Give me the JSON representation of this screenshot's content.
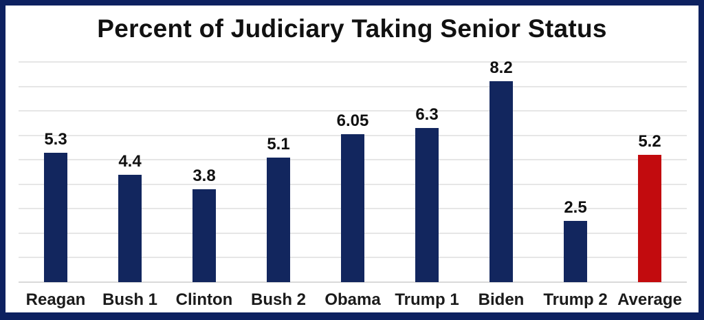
{
  "chart_data": {
    "type": "bar",
    "title": "Percent of Judiciary Taking Senior Status",
    "categories": [
      "Reagan",
      "Bush 1",
      "Clinton",
      "Bush 2",
      "Obama",
      "Trump 1",
      "Biden",
      "Trump 2",
      "Average"
    ],
    "values": [
      5.3,
      4.4,
      3.8,
      5.1,
      6.05,
      6.3,
      8.2,
      2.5,
      5.2
    ],
    "value_labels": [
      "5.3",
      "4.4",
      "3.8",
      "5.1",
      "6.05",
      "6.3",
      "8.2",
      "2.5",
      "5.2"
    ],
    "bar_colors": [
      "#12265e",
      "#12265e",
      "#12265e",
      "#12265e",
      "#12265e",
      "#12265e",
      "#12265e",
      "#12265e",
      "#c20b0e"
    ],
    "default_bar_color": "#12265e",
    "highlight_bar_color": "#c20b0e",
    "xlabel": "",
    "ylabel": "",
    "ylim": [
      0,
      9
    ],
    "gridline_interval": 1,
    "grid": true,
    "legend_position": "none"
  },
  "frame": {
    "border_color": "#0d2160",
    "background_color": "#ffffff",
    "gridline_color": "#e6e6e6",
    "baseline_color": "#d9d9d9",
    "title_color": "#111111",
    "label_color": "#1b1b1b"
  }
}
